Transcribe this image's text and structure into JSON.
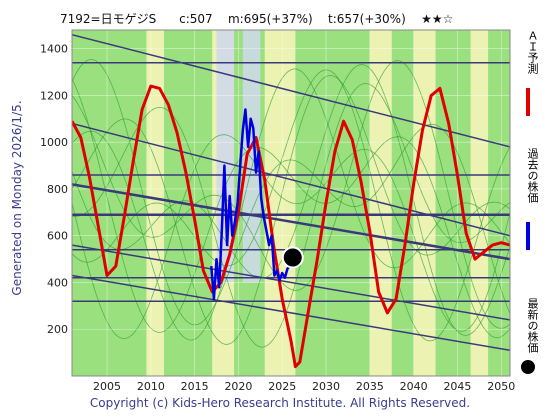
{
  "header": {
    "code_name": "7192=日モゲジS",
    "current": "c:507",
    "mid": "m:695(+37%)",
    "target": "t:657(+30%)",
    "rating": "★★☆"
  },
  "generated": "Generated on Monday 2026/1/5.",
  "footer": "Copyright (c) Kids-Hero Research Institute. All Rights Reserved.",
  "legend": {
    "forecast": "ＡＩ予測",
    "past": "過去の株価",
    "latest": "最新の株価"
  },
  "colors": {
    "background": "#9be07f",
    "pale_band": "#f4f4b8",
    "blue_band": "#cfd8ec",
    "trend_lines": "#3a3a7a",
    "thin_green": "#2da02d",
    "forecast": "#e00000",
    "past": "#0000e0",
    "latest": "#000000"
  },
  "chart_data": {
    "type": "line",
    "xlim": [
      2001,
      2051
    ],
    "ylim": [
      0,
      1480
    ],
    "x_ticks": [
      2005,
      2010,
      2015,
      2020,
      2025,
      2030,
      2035,
      2040,
      2045,
      2050
    ],
    "y_ticks": [
      200,
      400,
      600,
      800,
      1000,
      1200,
      1400
    ],
    "horizontal_levels": [
      320,
      420,
      540,
      690,
      860,
      1340
    ],
    "sloped_lines": [
      {
        "x": [
          2001,
          2051
        ],
        "y": [
          1460,
          980
        ]
      },
      {
        "x": [
          2001,
          2051
        ],
        "y": [
          1080,
          600
        ]
      },
      {
        "x": [
          2001,
          2051
        ],
        "y": [
          820,
          500
        ]
      },
      {
        "x": [
          2001,
          2051
        ],
        "y": [
          560,
          240
        ]
      },
      {
        "x": [
          2001,
          2051
        ],
        "y": [
          430,
          110
        ]
      }
    ],
    "pale_bands": [
      [
        2009.5,
        2011.5
      ],
      [
        2017,
        2019.5
      ],
      [
        2023,
        2026.5
      ],
      [
        2035,
        2037.5
      ],
      [
        2040,
        2042.5
      ],
      [
        2046.5,
        2048.5
      ]
    ],
    "blue_bands": [
      [
        2017.5,
        2019.5
      ],
      [
        2020.5,
        2022.5
      ]
    ],
    "series": [
      {
        "name": "ＡＩ予測",
        "x": [
          2001,
          2002,
          2003,
          2004,
          2005,
          2006,
          2007,
          2008,
          2009,
          2010,
          2011,
          2012,
          2013,
          2014,
          2015,
          2016,
          2017,
          2018,
          2019,
          2020,
          2021,
          2022,
          2023,
          2024,
          2025,
          2026,
          2026.5,
          2027,
          2028,
          2029,
          2030,
          2031,
          2032,
          2033,
          2034,
          2035,
          2036,
          2037,
          2038,
          2039,
          2040,
          2041,
          2042,
          2043,
          2044,
          2045,
          2046,
          2047,
          2048,
          2049,
          2050,
          2051
        ],
        "values": [
          1090,
          1020,
          850,
          640,
          430,
          470,
          690,
          920,
          1140,
          1240,
          1230,
          1160,
          1040,
          870,
          670,
          450,
          360,
          400,
          520,
          700,
          950,
          1020,
          840,
          560,
          330,
          150,
          40,
          60,
          280,
          500,
          740,
          960,
          1090,
          1010,
          830,
          620,
          360,
          270,
          330,
          560,
          820,
          1050,
          1200,
          1230,
          1080,
          860,
          610,
          500,
          530,
          560,
          570,
          560
        ]
      },
      {
        "name": "過去の株価",
        "x": [
          2016.9,
          2017.2,
          2017.5,
          2017.8,
          2018.1,
          2018.4,
          2018.7,
          2019.0,
          2019.3,
          2019.6,
          2019.9,
          2020.2,
          2020.5,
          2020.8,
          2021.1,
          2021.4,
          2021.7,
          2022.0,
          2022.3,
          2022.6,
          2022.9,
          2023.2,
          2023.5,
          2023.8,
          2024.1,
          2024.4,
          2024.7,
          2025.0,
          2025.3,
          2025.6,
          2025.9
        ],
        "values": [
          470,
          330,
          500,
          380,
          620,
          900,
          560,
          770,
          600,
          660,
          740,
          900,
          1050,
          1140,
          980,
          1100,
          1060,
          870,
          960,
          760,
          680,
          620,
          560,
          600,
          430,
          450,
          410,
          440,
          420,
          460,
          470
        ]
      }
    ],
    "latest_point": {
      "x": 2026.2,
      "y": 507
    }
  }
}
